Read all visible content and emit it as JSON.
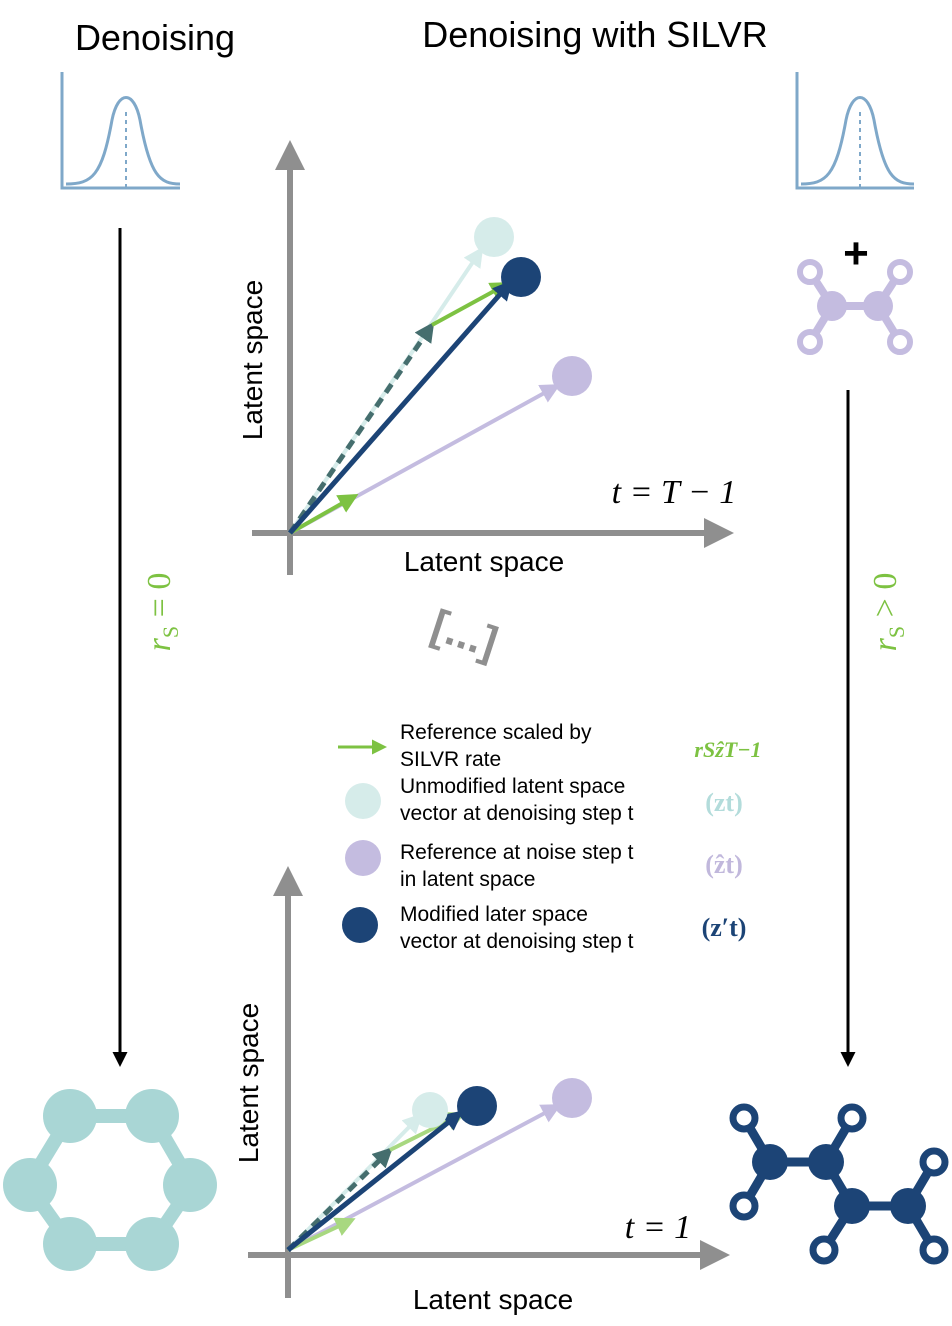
{
  "titles": {
    "left": "Denoising",
    "right": "Denoising with SILVR"
  },
  "plots": {
    "top": {
      "xlabel": "Latent space",
      "ylabel": "Latent space",
      "time_label": "t = T − 1"
    },
    "bottom": {
      "xlabel": "Latent space",
      "ylabel": "Latent space",
      "time_label": "t = 1"
    }
  },
  "ellipsis": "[...]",
  "rates": {
    "left": "r",
    "left_sub": "S",
    "left_rel": " = 0",
    "right": "r",
    "right_sub": "S",
    "right_rel": " > 0"
  },
  "plus_sign": "+",
  "legend": [
    {
      "line1": "Reference scaled by",
      "line2": "SILVR rate",
      "symbol": "rSẑT−1",
      "color": "#7dc242"
    },
    {
      "line1": "Unmodified latent space",
      "line2": "vector at denoising step t",
      "symbol": "(zt)",
      "color": "#b3dcdb"
    },
    {
      "line1": "Reference at noise step t",
      "line2": "in latent space",
      "symbol": "(ẑt)",
      "color": "#c1b8dc"
    },
    {
      "line1": "Modified later space",
      "line2": "vector at denoising step t",
      "symbol": "(z′t)",
      "color": "#1c4476"
    }
  ],
  "colors": {
    "axis": "#8f8f8f",
    "green": "#7dc242",
    "teal_light": "#d6ecea",
    "teal_mol": "#a9d6d5",
    "lavender": "#c4bce0",
    "navy": "#1c4476",
    "dashed": "#456e6e",
    "dist": "#7fa8c9"
  }
}
